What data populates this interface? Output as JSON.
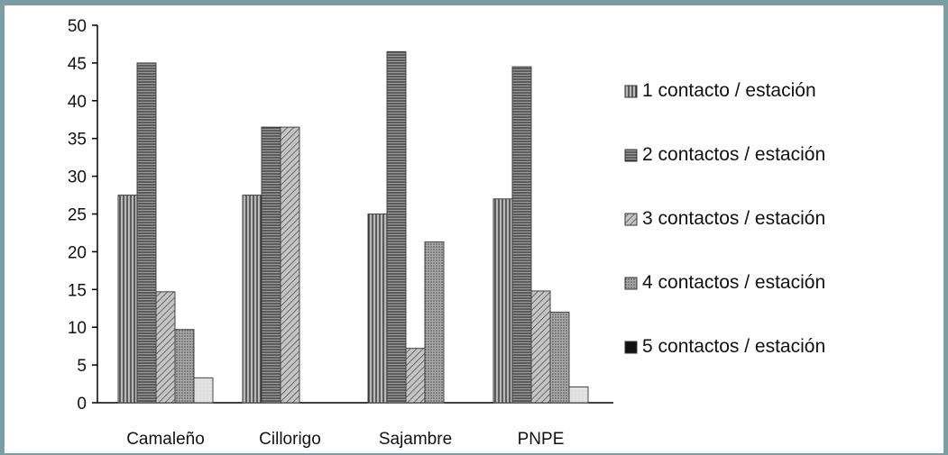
{
  "chart_data": {
    "type": "bar",
    "categories": [
      "Camaleño",
      "Cillorigo",
      "Sajambre",
      "PNPE"
    ],
    "series": [
      {
        "name": "1 contacto / estación",
        "values": [
          27.5,
          27.5,
          25.0,
          27.0
        ]
      },
      {
        "name": "2 contactos / estación",
        "values": [
          45.0,
          36.5,
          46.5,
          44.5
        ]
      },
      {
        "name": "3 contactos / estación",
        "values": [
          14.7,
          36.5,
          7.2,
          14.8
        ]
      },
      {
        "name": "4 contactos / estación",
        "values": [
          9.7,
          0,
          21.3,
          12.0
        ]
      },
      {
        "name": "5 contactos / estación",
        "values": [
          3.3,
          0,
          0,
          2.1
        ]
      }
    ],
    "ylim": [
      0,
      50
    ],
    "yticks": [
      0,
      5,
      10,
      15,
      20,
      25,
      30,
      35,
      40,
      45,
      50
    ],
    "title": "",
    "xlabel": "",
    "ylabel": "",
    "legend_position": "right",
    "grid": false,
    "colors": {
      "axis": "#000000",
      "bar_fill": "#9a9a9a",
      "bar_light": "#dcdcdc",
      "frame": "#7b9ea5"
    }
  }
}
